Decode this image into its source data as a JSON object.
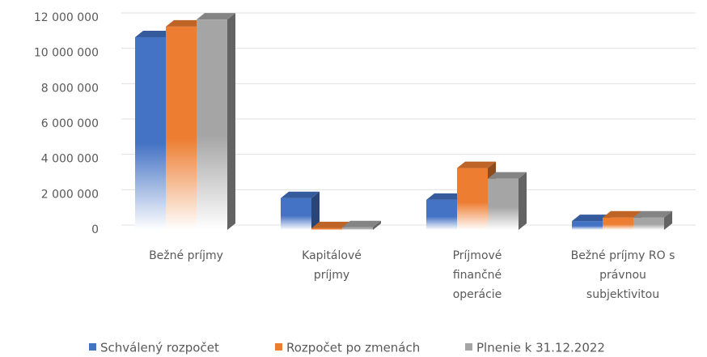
{
  "chart_data": {
    "type": "bar3d",
    "categories": [
      "Bežné príjmy",
      "Kapitálové príjmy",
      "Príjmové finančné operácie",
      "Bežné príjmy RO s právnou subjektivitou"
    ],
    "series": [
      {
        "name": "Schválený rozpočet",
        "color": "#4472c4",
        "values": [
          10900000,
          1800000,
          1700000,
          500000
        ]
      },
      {
        "name": "Rozpočet po zmenách",
        "color": "#ed7d31",
        "values": [
          11500000,
          100000,
          3500000,
          700000
        ]
      },
      {
        "name": "Plnenie k 31.12.2022",
        "color": "#a5a5a5",
        "values": [
          11900000,
          150000,
          2900000,
          700000
        ]
      }
    ],
    "ylim": [
      0,
      12000000
    ],
    "yticks": [
      0,
      {
        "value": 2000000,
        "label": "2 000 000"
      },
      {
        "value": 4000000,
        "label": "4 000 000"
      },
      {
        "value": 6000000,
        "label": "6 000 000"
      },
      {
        "value": 8000000,
        "label": "8 000 000"
      },
      {
        "value": 10000000,
        "label": "10 000 000"
      },
      {
        "value": 12000000,
        "label": "12 000 000"
      }
    ],
    "grid": true,
    "legend": "bottom"
  }
}
